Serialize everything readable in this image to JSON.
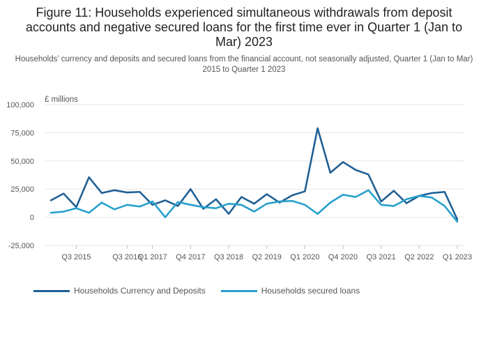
{
  "title": "Figure 11: Households experienced simultaneous withdrawals from deposit accounts and negative secured loans for the first time ever in Quarter 1 (Jan to Mar) 2023",
  "subtitle": "Households’ currency and deposits and secured loans from the financial account, not seasonally adjusted, Quarter 1 (Jan to Mar) 2015 to Quarter 1 2023",
  "colors": {
    "deposits": "#206095",
    "loans": "#27A0CC",
    "grid": "#e6e6e6",
    "text": "#555555"
  },
  "chart_data": {
    "type": "line",
    "ylabel": "£ millions",
    "ylim": [
      -25000,
      100000
    ],
    "yticks": [
      -25000,
      0,
      25000,
      50000,
      75000,
      100000
    ],
    "ytick_labels": [
      "-25,000",
      "0",
      "25,000",
      "50,000",
      "75,000",
      "100,000"
    ],
    "x": [
      "Q1 2015",
      "Q2 2015",
      "Q3 2015",
      "Q4 2015",
      "Q1 2016",
      "Q2 2016",
      "Q3 2016",
      "Q4 2016",
      "Q1 2017",
      "Q2 2017",
      "Q3 2017",
      "Q4 2017",
      "Q1 2018",
      "Q2 2018",
      "Q3 2018",
      "Q4 2018",
      "Q1 2019",
      "Q2 2019",
      "Q3 2019",
      "Q4 2019",
      "Q1 2020",
      "Q2 2020",
      "Q3 2020",
      "Q4 2020",
      "Q1 2021",
      "Q2 2021",
      "Q3 2021",
      "Q4 2021",
      "Q1 2022",
      "Q2 2022",
      "Q3 2022",
      "Q4 2022",
      "Q1 2023"
    ],
    "xtick_labels": [
      "Q3 2015",
      "Q3 2016",
      "Q1 2017",
      "Q4 2017",
      "Q3 2018",
      "Q2 2019",
      "Q1 2020",
      "Q4 2020",
      "Q3 2021",
      "Q2 2022",
      "Q1 2023"
    ],
    "grid": true,
    "legend_position": "bottom",
    "series": [
      {
        "name": "Households Currency and Deposits",
        "values": [
          15000,
          21000,
          9000,
          35500,
          21500,
          24000,
          22000,
          22500,
          11000,
          15000,
          10000,
          25000,
          7500,
          16000,
          3000,
          18000,
          12000,
          20500,
          13000,
          19500,
          23000,
          79000,
          39500,
          49000,
          42000,
          38000,
          14000,
          23500,
          12500,
          19000,
          21500,
          22500,
          -2000
        ]
      },
      {
        "name": "Households secured loans",
        "values": [
          4000,
          5000,
          8000,
          4000,
          13000,
          7000,
          11000,
          9500,
          14000,
          0,
          13500,
          11000,
          9000,
          8000,
          12000,
          11000,
          5000,
          12000,
          14000,
          14500,
          11000,
          3000,
          13000,
          20000,
          18000,
          24000,
          11000,
          10000,
          16000,
          19000,
          17500,
          10000,
          -4000
        ]
      }
    ]
  }
}
